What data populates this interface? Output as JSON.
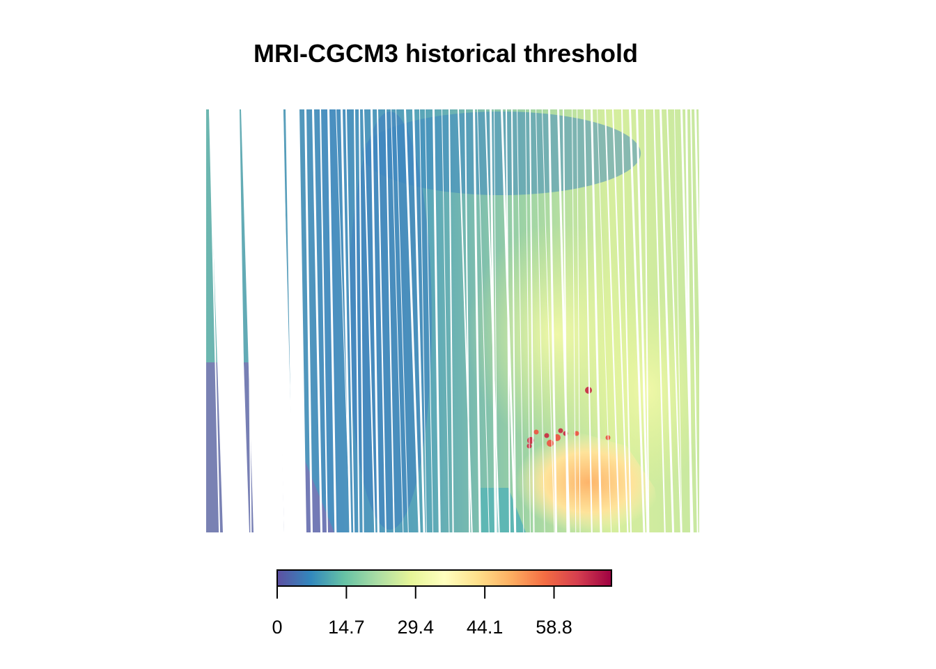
{
  "chart_data": {
    "type": "heatmap",
    "title": "MRI-CGCM3 historical threshold",
    "xlabel": "",
    "ylabel": "",
    "grid": false,
    "legend": {
      "placement": "bottom",
      "kind": "colorbar",
      "min": 0,
      "max": 71,
      "ticks": [
        0,
        14.7,
        29.4,
        44.1,
        58.8
      ],
      "tick_labels": [
        "0",
        "14.7",
        "29.4",
        "44.1",
        "58.8"
      ],
      "palette": [
        "#5e4fa2",
        "#3288bd",
        "#66c2a5",
        "#abdda4",
        "#e6f598",
        "#ffffbf",
        "#fee08b",
        "#fdae61",
        "#f46d43",
        "#d53e4f",
        "#9e0142"
      ]
    },
    "regions": [
      {
        "area": "northwest",
        "approx_value": 12
      },
      {
        "area": "west-center band",
        "approx_value": 9
      },
      {
        "area": "center",
        "approx_value": 18
      },
      {
        "area": "northeast",
        "approx_value": 14
      },
      {
        "area": "east-center",
        "approx_value": 30
      },
      {
        "area": "southeast",
        "approx_value": 40
      },
      {
        "area": "south hotspots",
        "approx_value": 62
      },
      {
        "area": "far southwest",
        "approx_value": 3
      }
    ]
  }
}
